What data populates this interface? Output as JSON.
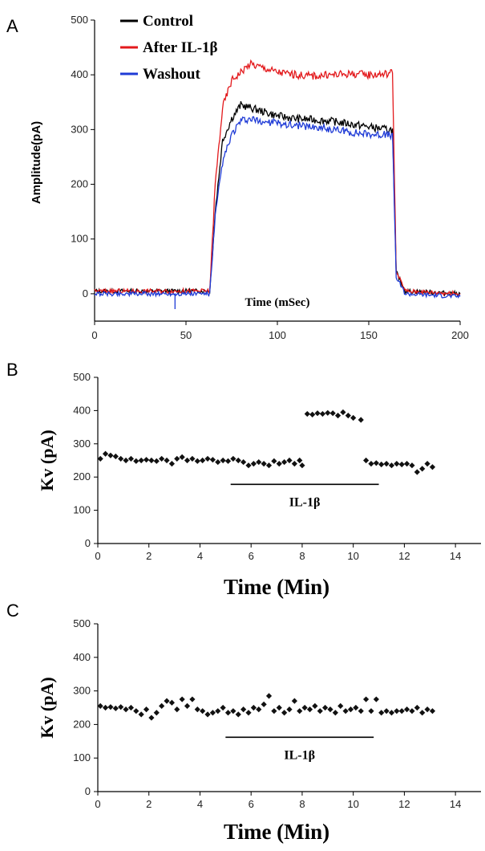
{
  "chart_data": [
    {
      "panel": "A",
      "type": "line",
      "xlabel": "Time (mSec)",
      "ylabel": "Amplitude(pA)",
      "xlim": [
        0,
        200
      ],
      "ylim": [
        -50,
        500
      ],
      "xticks": [
        0,
        50,
        100,
        150,
        200
      ],
      "yticks": [
        0,
        100,
        200,
        300,
        400,
        500
      ],
      "legend_position": "top-left",
      "series": [
        {
          "name": "Control",
          "color": "#000000",
          "x": [
            0,
            63,
            66,
            70,
            75,
            80,
            85,
            90,
            100,
            110,
            120,
            130,
            140,
            150,
            160,
            163,
            165,
            170,
            200
          ],
          "y": [
            5,
            5,
            150,
            280,
            320,
            345,
            340,
            335,
            325,
            320,
            318,
            315,
            310,
            305,
            300,
            300,
            40,
            5,
            0
          ]
        },
        {
          "name": "After IL-1β",
          "color": "#e3191c",
          "x": [
            0,
            63,
            66,
            70,
            75,
            80,
            85,
            90,
            100,
            110,
            120,
            130,
            140,
            150,
            160,
            163,
            165,
            170,
            200
          ],
          "y": [
            5,
            5,
            200,
            340,
            390,
            405,
            420,
            415,
            405,
            400,
            398,
            400,
            402,
            400,
            402,
            405,
            40,
            5,
            0
          ]
        },
        {
          "name": "Washout",
          "color": "#1f3bd6",
          "x": [
            0,
            63,
            66,
            70,
            75,
            80,
            85,
            90,
            100,
            110,
            120,
            130,
            140,
            150,
            160,
            163,
            165,
            170,
            200
          ],
          "y": [
            0,
            0,
            140,
            240,
            290,
            315,
            318,
            315,
            312,
            308,
            305,
            300,
            295,
            292,
            290,
            290,
            30,
            0,
            -5
          ]
        }
      ]
    },
    {
      "panel": "B",
      "type": "scatter",
      "xlabel": "Time (Min)",
      "ylabel": "Kv (pA)",
      "xlim": [
        0,
        15
      ],
      "ylim": [
        0,
        500
      ],
      "xticks": [
        0,
        2,
        4,
        6,
        8,
        10,
        12,
        14
      ],
      "yticks": [
        0,
        100,
        200,
        300,
        400,
        500
      ],
      "annotation": {
        "label": "IL-1β",
        "x_start": 5.2,
        "x_end": 11.0,
        "y": 178
      },
      "x": [
        0.1,
        0.3,
        0.5,
        0.7,
        0.9,
        1.1,
        1.3,
        1.5,
        1.7,
        1.9,
        2.1,
        2.3,
        2.5,
        2.7,
        2.9,
        3.1,
        3.3,
        3.5,
        3.7,
        3.9,
        4.1,
        4.3,
        4.5,
        4.7,
        4.9,
        5.1,
        5.3,
        5.5,
        5.7,
        5.9,
        6.1,
        6.3,
        6.5,
        6.7,
        6.9,
        7.1,
        7.3,
        7.5,
        7.7,
        7.9,
        8.0,
        8.2,
        8.4,
        8.6,
        8.8,
        9.0,
        9.2,
        9.4,
        9.6,
        9.8,
        10.0,
        10.3,
        10.5,
        10.7,
        10.9,
        11.1,
        11.3,
        11.5,
        11.7,
        11.9,
        12.1,
        12.3,
        12.5,
        12.7,
        12.9,
        13.1
      ],
      "y": [
        255,
        270,
        265,
        262,
        255,
        250,
        255,
        248,
        250,
        252,
        250,
        248,
        255,
        250,
        240,
        255,
        260,
        250,
        255,
        248,
        250,
        255,
        252,
        245,
        250,
        248,
        255,
        250,
        245,
        235,
        240,
        245,
        240,
        235,
        248,
        240,
        245,
        250,
        240,
        250,
        235,
        390,
        388,
        392,
        390,
        393,
        392,
        385,
        395,
        385,
        378,
        372,
        250,
        240,
        242,
        238,
        240,
        235,
        240,
        238,
        240,
        235,
        215,
        225,
        240,
        230
      ]
    },
    {
      "panel": "C",
      "type": "scatter",
      "xlabel": "Time (Min)",
      "ylabel": "Kv (pA)",
      "xlim": [
        0,
        15
      ],
      "ylim": [
        0,
        500
      ],
      "xticks": [
        0,
        2,
        4,
        6,
        8,
        10,
        12,
        14
      ],
      "yticks": [
        0,
        100,
        200,
        300,
        400,
        500
      ],
      "annotation": {
        "label": "IL-1β",
        "x_start": 5.0,
        "x_end": 10.8,
        "y": 162
      },
      "x": [
        0.1,
        0.3,
        0.5,
        0.7,
        0.9,
        1.1,
        1.3,
        1.5,
        1.7,
        1.9,
        2.1,
        2.3,
        2.5,
        2.7,
        2.9,
        3.1,
        3.3,
        3.5,
        3.7,
        3.9,
        4.1,
        4.3,
        4.5,
        4.7,
        4.9,
        5.1,
        5.3,
        5.5,
        5.7,
        5.9,
        6.1,
        6.3,
        6.5,
        6.7,
        6.9,
        7.1,
        7.3,
        7.5,
        7.7,
        7.9,
        8.1,
        8.3,
        8.5,
        8.7,
        8.9,
        9.1,
        9.3,
        9.5,
        9.7,
        9.9,
        10.1,
        10.3,
        10.5,
        10.7,
        10.9,
        11.1,
        11.3,
        11.5,
        11.7,
        11.9,
        12.1,
        12.3,
        12.5,
        12.7,
        12.9,
        13.1
      ],
      "y": [
        255,
        250,
        252,
        248,
        252,
        245,
        250,
        240,
        230,
        245,
        220,
        235,
        255,
        270,
        265,
        245,
        275,
        255,
        275,
        245,
        240,
        230,
        235,
        240,
        250,
        235,
        240,
        230,
        245,
        235,
        250,
        245,
        260,
        285,
        240,
        250,
        235,
        245,
        270,
        240,
        250,
        245,
        255,
        240,
        250,
        245,
        235,
        255,
        240,
        245,
        250,
        240,
        275,
        240,
        275,
        235,
        240,
        235,
        240,
        240,
        245,
        240,
        250,
        235,
        245,
        240
      ]
    }
  ],
  "labels": {
    "panel_a": "A",
    "panel_b": "B",
    "panel_c": "C"
  }
}
